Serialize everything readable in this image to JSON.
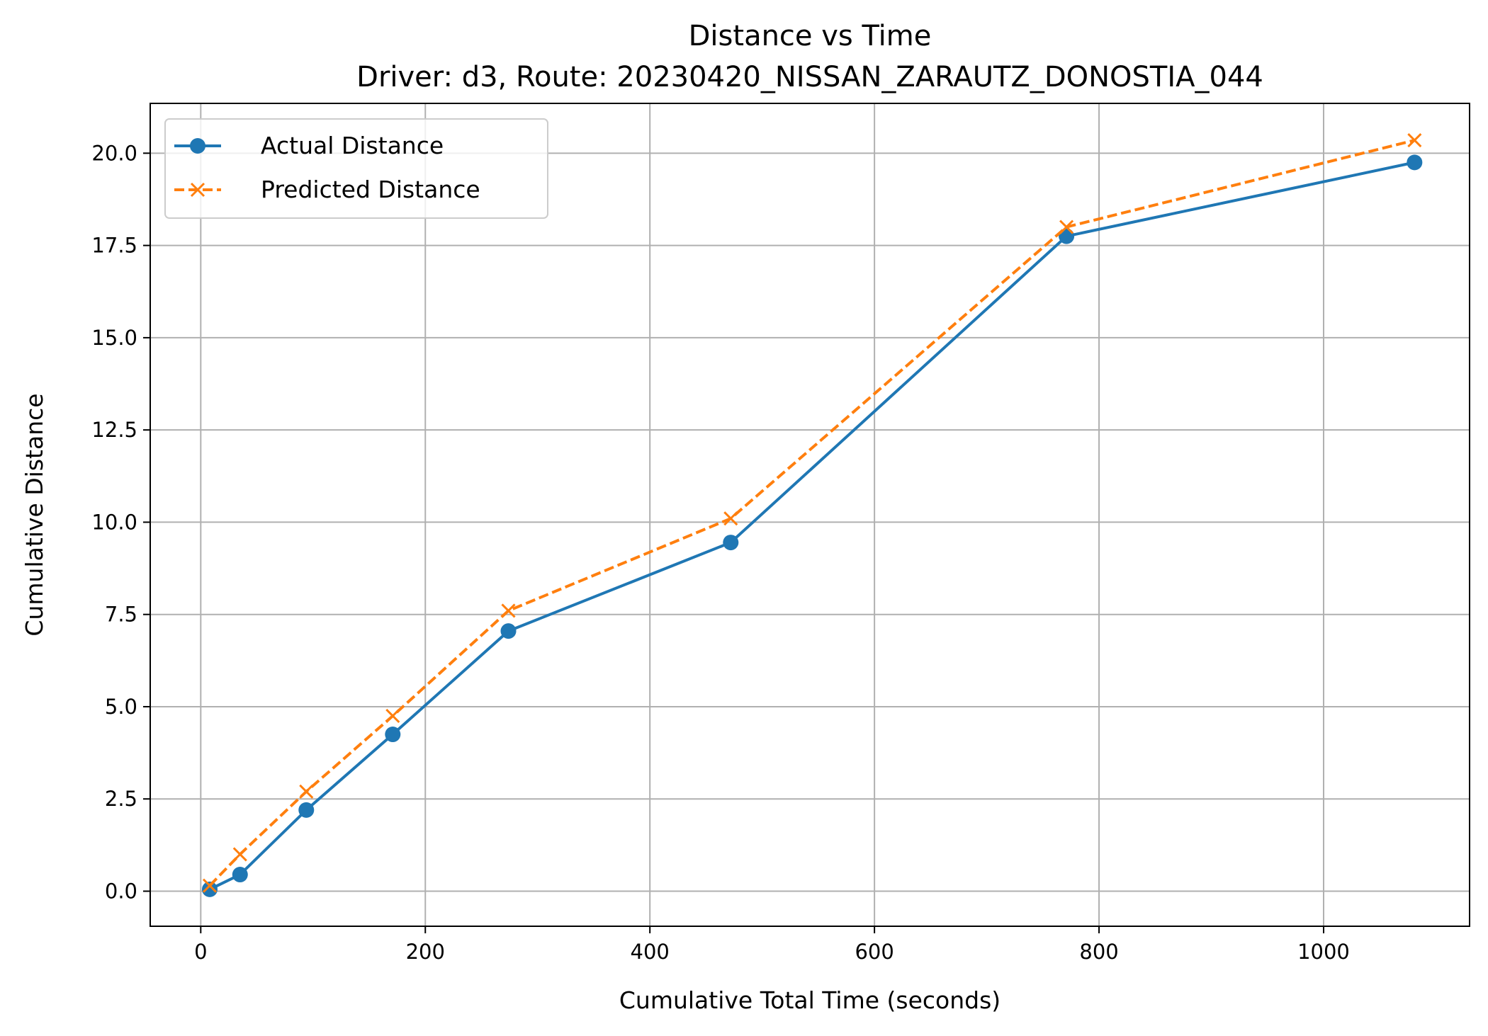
{
  "chart_data": {
    "type": "line",
    "title": "Distance vs Time",
    "subtitle": "Driver: d3, Route: 20230420_NISSAN_ZARAUTZ_DONOSTIA_044",
    "xlabel": "Cumulative Total Time (seconds)",
    "ylabel": "Cumulative Distance",
    "xlim": [
      -45,
      1130
    ],
    "ylim": [
      -0.95,
      21.35
    ],
    "xticks": [
      0,
      200,
      400,
      600,
      800,
      1000
    ],
    "xtick_labels": [
      "0",
      "200",
      "400",
      "600",
      "800",
      "1000"
    ],
    "yticks": [
      0,
      2.5,
      5,
      7.5,
      10,
      12.5,
      15,
      17.5,
      20
    ],
    "ytick_labels": [
      "0.0",
      "2.5",
      "5.0",
      "7.5",
      "10.0",
      "12.5",
      "15.0",
      "17.5",
      "20.0"
    ],
    "grid": true,
    "legend_position": "top-left",
    "series": [
      {
        "name": "Actual Distance",
        "color": "#1f77b4",
        "line_style": "solid",
        "marker": "circle",
        "x": [
          8,
          35,
          94,
          171,
          274,
          472,
          771,
          1081
        ],
        "y": [
          0.05,
          0.45,
          2.2,
          4.25,
          7.05,
          9.45,
          17.75,
          19.75
        ]
      },
      {
        "name": "Predicted Distance",
        "color": "#ff7f0e",
        "line_style": "dashed",
        "marker": "x",
        "x": [
          8,
          35,
          94,
          171,
          274,
          472,
          771,
          1081
        ],
        "y": [
          0.15,
          1.0,
          2.7,
          4.75,
          7.6,
          10.1,
          18.0,
          20.35
        ]
      }
    ]
  }
}
